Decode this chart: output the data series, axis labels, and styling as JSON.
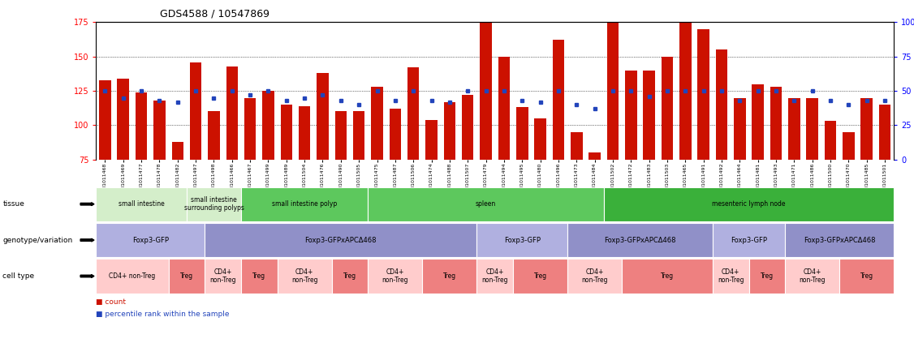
{
  "title": "GDS4588 / 10547869",
  "samples": [
    "GSM1011468",
    "GSM1011469",
    "GSM1011477",
    "GSM1011478",
    "GSM1011482",
    "GSM1011497",
    "GSM1011498",
    "GSM1011466",
    "GSM1011467",
    "GSM1011499",
    "GSM1011489",
    "GSM1011504",
    "GSM1011476",
    "GSM1011490",
    "GSM1011505",
    "GSM1011475",
    "GSM1011487",
    "GSM1011506",
    "GSM1011474",
    "GSM1011488",
    "GSM1011507",
    "GSM1011479",
    "GSM1011494",
    "GSM1011495",
    "GSM1011480",
    "GSM1011496",
    "GSM1011473",
    "GSM1011484",
    "GSM1011502",
    "GSM1011472",
    "GSM1011483",
    "GSM1011503",
    "GSM1011465",
    "GSM1011491",
    "GSM1011492",
    "GSM1011464",
    "GSM1011481",
    "GSM1011493",
    "GSM1011471",
    "GSM1011486",
    "GSM1011500",
    "GSM1011470",
    "GSM1011485",
    "GSM1011501"
  ],
  "bar_heights": [
    133,
    134,
    124,
    118,
    88,
    146,
    110,
    143,
    120,
    125,
    115,
    114,
    138,
    110,
    110,
    128,
    112,
    142,
    104,
    117,
    122,
    175,
    150,
    113,
    105,
    162,
    95,
    80,
    175,
    140,
    140,
    150,
    175,
    170,
    155,
    120,
    130,
    128,
    120,
    120,
    103,
    95,
    120,
    115
  ],
  "blue_heights_pct": [
    50,
    45,
    50,
    43,
    42,
    50,
    45,
    50,
    47,
    50,
    43,
    45,
    47,
    43,
    40,
    50,
    43,
    50,
    43,
    42,
    50,
    50,
    50,
    43,
    42,
    50,
    40,
    37,
    50,
    50,
    46,
    50,
    50,
    50,
    50,
    43,
    50,
    50,
    43,
    50,
    43,
    40,
    43,
    43
  ],
  "ylim_left": [
    75,
    175
  ],
  "yticks_left": [
    75,
    100,
    125,
    150,
    175
  ],
  "yticks_right": [
    0,
    25,
    50,
    75,
    100
  ],
  "bar_color": "#cc1100",
  "blue_color": "#2244bb",
  "tissue_sections": [
    {
      "label": "small intestine",
      "start": 0,
      "end": 5,
      "color": "#d4eeca"
    },
    {
      "label": "small intestine\nsurrounding polyps",
      "start": 5,
      "end": 8,
      "color": "#d4eeca"
    },
    {
      "label": "small intestine polyp",
      "start": 8,
      "end": 15,
      "color": "#5dc85d"
    },
    {
      "label": "spleen",
      "start": 15,
      "end": 28,
      "color": "#5dc85d"
    },
    {
      "label": "mesenteric lymph node",
      "start": 28,
      "end": 44,
      "color": "#3ab03a"
    }
  ],
  "genotype_sections": [
    {
      "label": "Foxp3-GFP",
      "start": 0,
      "end": 6,
      "color": "#b0b0e0"
    },
    {
      "label": "Foxp3-GFPxAPCΔ468",
      "start": 6,
      "end": 21,
      "color": "#9090c8"
    },
    {
      "label": "Foxp3-GFP",
      "start": 21,
      "end": 26,
      "color": "#b0b0e0"
    },
    {
      "label": "Foxp3-GFPxAPCΔ468",
      "start": 26,
      "end": 34,
      "color": "#9090c8"
    },
    {
      "label": "Foxp3-GFP",
      "start": 34,
      "end": 38,
      "color": "#b0b0e0"
    },
    {
      "label": "Foxp3-GFPxAPCΔ468",
      "start": 38,
      "end": 44,
      "color": "#9090c8"
    }
  ],
  "celltype_sections": [
    {
      "label": "CD4+ non-Treg",
      "start": 0,
      "end": 4,
      "color": "#ffcccc"
    },
    {
      "label": "Treg",
      "start": 4,
      "end": 6,
      "color": "#ee8080"
    },
    {
      "label": "CD4+\nnon-Treg",
      "start": 6,
      "end": 8,
      "color": "#ffcccc"
    },
    {
      "label": "Treg",
      "start": 8,
      "end": 10,
      "color": "#ee8080"
    },
    {
      "label": "CD4+\nnon-Treg",
      "start": 10,
      "end": 13,
      "color": "#ffcccc"
    },
    {
      "label": "Treg",
      "start": 13,
      "end": 15,
      "color": "#ee8080"
    },
    {
      "label": "CD4+\nnon-Treg",
      "start": 15,
      "end": 18,
      "color": "#ffcccc"
    },
    {
      "label": "Treg",
      "start": 18,
      "end": 21,
      "color": "#ee8080"
    },
    {
      "label": "CD4+\nnon-Treg",
      "start": 21,
      "end": 23,
      "color": "#ffcccc"
    },
    {
      "label": "Treg",
      "start": 23,
      "end": 26,
      "color": "#ee8080"
    },
    {
      "label": "CD4+\nnon-Treg",
      "start": 26,
      "end": 29,
      "color": "#ffcccc"
    },
    {
      "label": "Treg",
      "start": 29,
      "end": 34,
      "color": "#ee8080"
    },
    {
      "label": "CD4+\nnon-Treg",
      "start": 34,
      "end": 36,
      "color": "#ffcccc"
    },
    {
      "label": "Treg",
      "start": 36,
      "end": 38,
      "color": "#ee8080"
    },
    {
      "label": "CD4+\nnon-Treg",
      "start": 38,
      "end": 41,
      "color": "#ffcccc"
    },
    {
      "label": "Treg",
      "start": 41,
      "end": 44,
      "color": "#ee8080"
    }
  ],
  "row_labels": [
    "tissue",
    "genotype/variation",
    "cell type"
  ],
  "legend_color_count": "#cc1100",
  "legend_color_pct": "#2244bb"
}
